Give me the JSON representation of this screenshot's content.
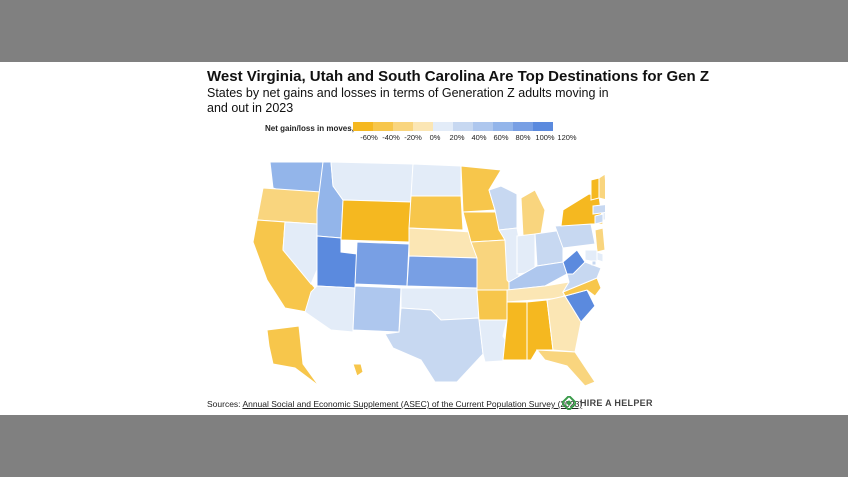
{
  "header": {
    "title": "West Virginia, Utah and South Carolina Are Top Destinations for Gen Z",
    "subtitle": "States by net gains and losses in terms of Generation Z adults moving in and out in 2023"
  },
  "legend": {
    "label": "Net gain/loss in moves, %",
    "ticks": [
      "-60%",
      "-40%",
      "-20%",
      "0%",
      "20%",
      "40%",
      "60%",
      "80%",
      "100%",
      "120%"
    ],
    "colors": [
      "#f5b820",
      "#f7c64b",
      "#f9d57e",
      "#fbe6b4",
      "#e3ecf8",
      "#c7d8f1",
      "#aec7ee",
      "#93b5ea",
      "#789fe4",
      "#5b8ade"
    ]
  },
  "chart_data": {
    "type": "choropleth",
    "metric": "Net gain/loss in moves, %",
    "scale_range": [
      -60,
      120
    ],
    "states": {
      "WA": {
        "name": "Washington",
        "value": 70
      },
      "OR": {
        "name": "Oregon",
        "value": -30
      },
      "CA": {
        "name": "California",
        "value": -50
      },
      "ID": {
        "name": "Idaho",
        "value": 70
      },
      "NV": {
        "name": "Nevada",
        "value": 25
      },
      "MT": {
        "name": "Montana",
        "value": 10
      },
      "WY": {
        "name": "Wyoming",
        "value": -55
      },
      "UT": {
        "name": "Utah",
        "value": 115
      },
      "AZ": {
        "name": "Arizona",
        "value": 10
      },
      "CO": {
        "name": "Colorado",
        "value": 90
      },
      "NM": {
        "name": "New Mexico",
        "value": 55
      },
      "ND": {
        "name": "North Dakota",
        "value": 25
      },
      "SD": {
        "name": "South Dakota",
        "value": -45
      },
      "NE": {
        "name": "Nebraska",
        "value": 5
      },
      "KS": {
        "name": "Kansas",
        "value": 95
      },
      "OK": {
        "name": "Oklahoma",
        "value": 20
      },
      "TX": {
        "name": "Texas",
        "value": 30
      },
      "MN": {
        "name": "Minnesota",
        "value": -45
      },
      "IA": {
        "name": "Iowa",
        "value": -50
      },
      "MO": {
        "name": "Missouri",
        "value": -25
      },
      "AR": {
        "name": "Arkansas",
        "value": -45
      },
      "LA": {
        "name": "Louisiana",
        "value": 15
      },
      "WI": {
        "name": "Wisconsin",
        "value": 30
      },
      "IL": {
        "name": "Illinois",
        "value": 25
      },
      "MI": {
        "name": "Michigan",
        "value": -20
      },
      "IN": {
        "name": "Indiana",
        "value": 15
      },
      "OH": {
        "name": "Ohio",
        "value": 45
      },
      "KY": {
        "name": "Kentucky",
        "value": 55
      },
      "TN": {
        "name": "Tennessee",
        "value": -10
      },
      "MS": {
        "name": "Mississippi",
        "value": -60
      },
      "AL": {
        "name": "Alabama",
        "value": -60
      },
      "GA": {
        "name": "Georgia",
        "value": -10
      },
      "FL": {
        "name": "Florida",
        "value": -30
      },
      "SC": {
        "name": "South Carolina",
        "value": 110
      },
      "NC": {
        "name": "North Carolina",
        "value": -50
      },
      "VA": {
        "name": "Virginia",
        "value": 30
      },
      "WV": {
        "name": "West Virginia",
        "value": 120
      },
      "PA": {
        "name": "Pennsylvania",
        "value": 40
      },
      "NY": {
        "name": "New York",
        "value": -55
      },
      "NJ": {
        "name": "New Jersey",
        "value": -20
      },
      "DE": {
        "name": "Delaware",
        "value": 20
      },
      "MD": {
        "name": "Maryland",
        "value": 20
      },
      "DC": {
        "name": "District of Columbia",
        "value": 30
      },
      "CT": {
        "name": "Connecticut",
        "value": 30
      },
      "RI": {
        "name": "Rhode Island",
        "value": 20
      },
      "MA": {
        "name": "Massachusetts",
        "value": 30
      },
      "VT": {
        "name": "Vermont",
        "value": -60
      },
      "NH": {
        "name": "New Hampshire",
        "value": -20
      },
      "ME": {
        "name": "Maine",
        "value": 25
      },
      "AK": {
        "name": "Alaska",
        "value": -45
      },
      "HI": {
        "name": "Hawaii",
        "value": -40
      }
    }
  },
  "footer": {
    "source_prefix": "Sources: ",
    "source_link": "Annual Social and Economic Supplement (ASEC) of the Current Population Survey (2023)",
    "logo_text": "HIRE A HELPER",
    "logo_color": "#3a9a4a"
  }
}
